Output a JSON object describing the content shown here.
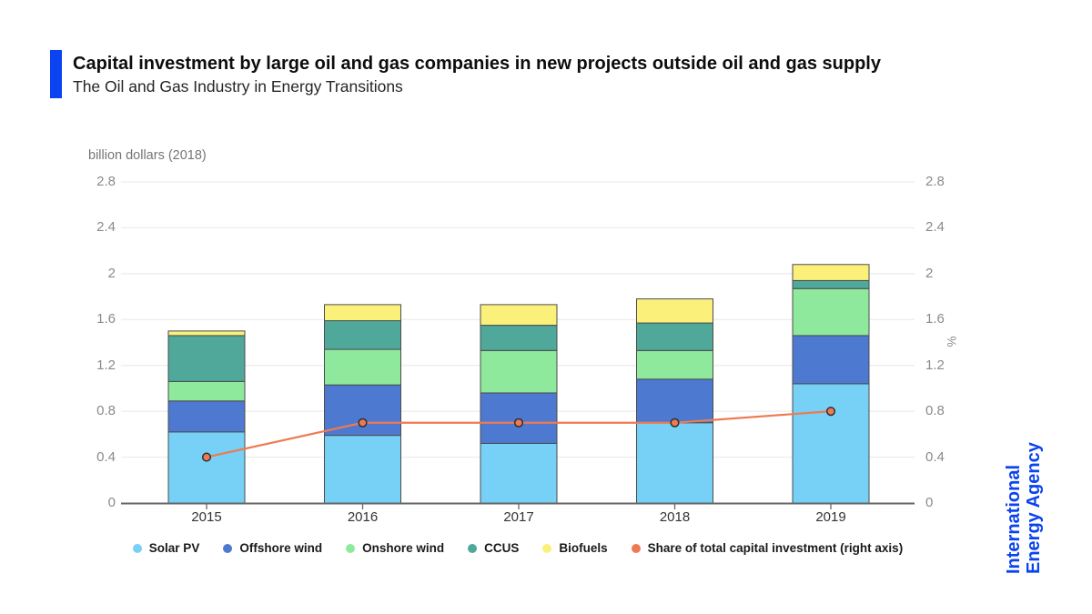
{
  "header": {
    "title": "Capital investment by large oil and gas companies in new projects outside oil and gas supply",
    "subtitle": "The Oil and Gas Industry in Energy Transitions"
  },
  "brand": {
    "logo_line1": "International",
    "logo_line2": "Energy Agency",
    "blue": "#0b43f0"
  },
  "chart_data": {
    "type": "stacked-bar+line",
    "categories": [
      "2015",
      "2016",
      "2017",
      "2018",
      "2019"
    ],
    "stacked_series": [
      {
        "name": "Solar PV",
        "color": "#77d0f5",
        "values": [
          0.62,
          0.59,
          0.52,
          0.7,
          1.04
        ]
      },
      {
        "name": "Offshore wind",
        "color": "#4d79d1",
        "values": [
          0.27,
          0.44,
          0.44,
          0.38,
          0.42
        ]
      },
      {
        "name": "Onshore wind",
        "color": "#8fe99c",
        "values": [
          0.17,
          0.31,
          0.37,
          0.25,
          0.41
        ]
      },
      {
        "name": "CCUS",
        "color": "#4fa89a",
        "values": [
          0.4,
          0.25,
          0.22,
          0.24,
          0.07
        ]
      },
      {
        "name": "Biofuels",
        "color": "#faf07a",
        "values": [
          0.04,
          0.14,
          0.18,
          0.21,
          0.14
        ]
      }
    ],
    "line_series": {
      "name": "Share of total capital investment (right axis)",
      "color": "#ee7a52",
      "values": [
        0.4,
        0.7,
        0.7,
        0.7,
        0.8
      ]
    },
    "left_axis": {
      "label": "billion dollars (2018)",
      "min": 0,
      "max": 2.8,
      "ticks": [
        "0",
        "0.4",
        "0.8",
        "1.2",
        "1.6",
        "2",
        "2.4",
        "2.8"
      ]
    },
    "right_axis": {
      "label": "%",
      "min": 0,
      "max": 2.8,
      "ticks": [
        "0",
        "0.4",
        "0.8",
        "1.2",
        "1.6",
        "2",
        "2.4",
        "2.8"
      ]
    },
    "grid": true,
    "legend_position": "bottom",
    "style": {
      "grid_color": "#e8e8e8",
      "axis_color": "#666666",
      "bar_stroke": "#4c4c4c",
      "point_stroke": "#2f2f2f"
    }
  }
}
